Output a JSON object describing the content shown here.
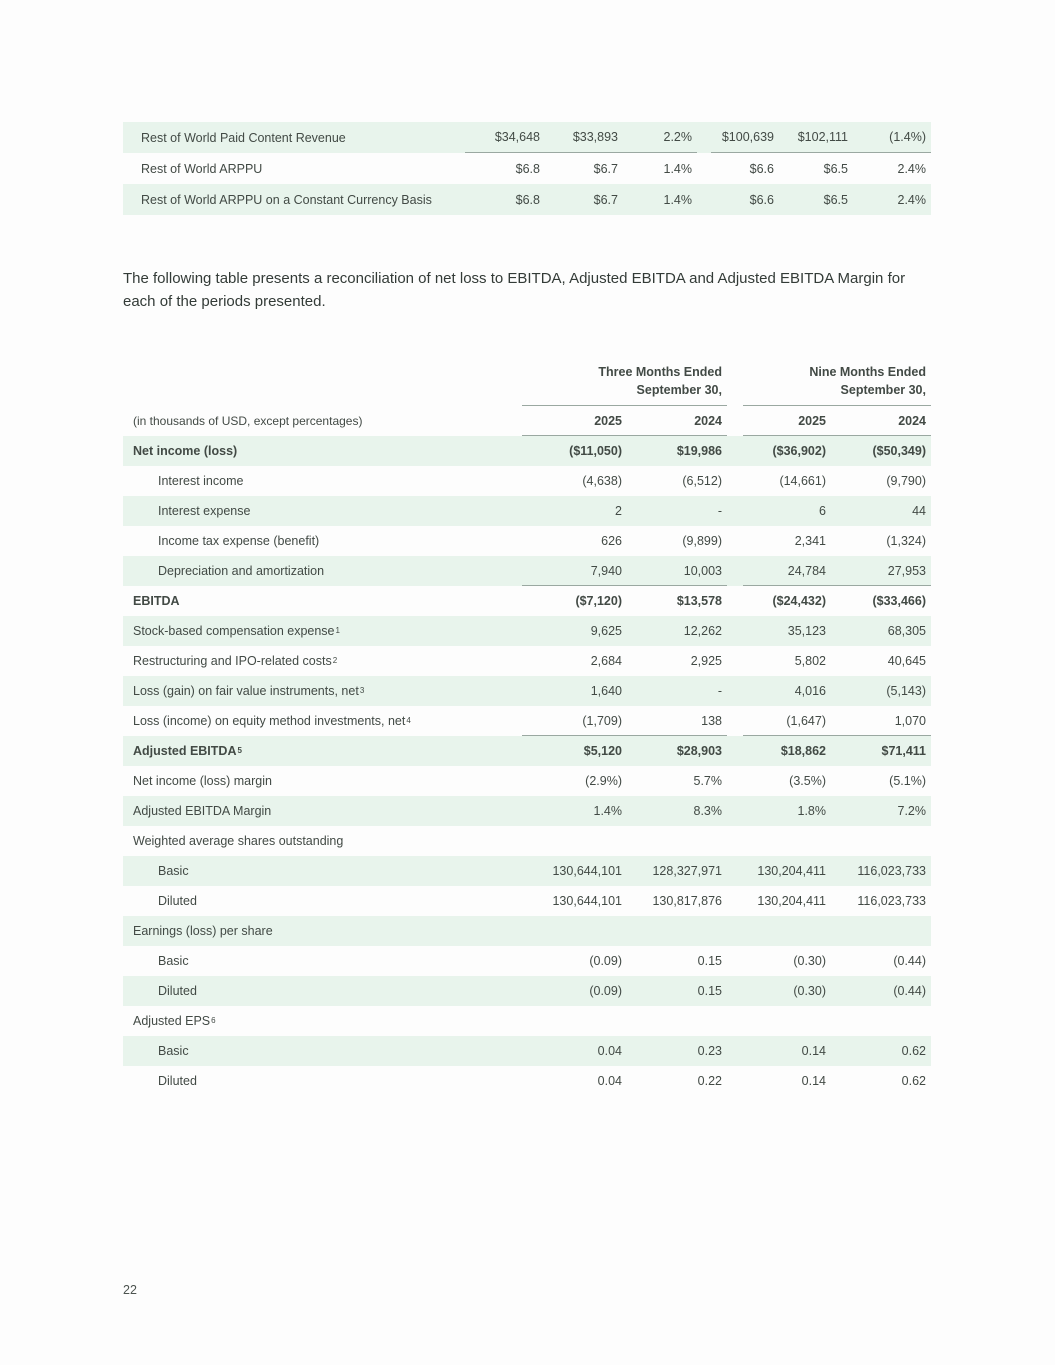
{
  "page": {
    "number": "22"
  },
  "colors": {
    "row_shade": "#e8f4ec",
    "rule": "#9aa8a1",
    "text": "#424a45"
  },
  "intro_paragraph": "The following table presents a reconciliation of net loss to EBITDA, Adjusted EBITDA and Adjusted EBITDA Margin for each of the periods presented.",
  "top_table": {
    "rows": [
      {
        "label": "Rest of World Paid Content Revenue",
        "shaded": true,
        "rule_below": true,
        "values": [
          "$34,648",
          "$33,893",
          "2.2%",
          "$100,639",
          "$102,111",
          "(1.4%)"
        ]
      },
      {
        "label": "Rest of World ARPPU",
        "shaded": false,
        "rule_below": false,
        "values": [
          "$6.8",
          "$6.7",
          "1.4%",
          "$6.6",
          "$6.5",
          "2.4%"
        ]
      },
      {
        "label": "Rest of World ARPPU on a Constant Currency Basis",
        "shaded": true,
        "rule_below": false,
        "values": [
          "$6.8",
          "$6.7",
          "1.4%",
          "$6.6",
          "$6.5",
          "2.4%"
        ]
      }
    ]
  },
  "reconciliation_table": {
    "group_headers": [
      "Three Months Ended\nSeptember 30,",
      "Nine Months Ended\nSeptember 30,"
    ],
    "unit_caption": "(in thousands of USD, except percentages)",
    "year_headers": [
      "2025",
      "2024",
      "2025",
      "2024"
    ],
    "rows": [
      {
        "label": "Net income (loss)",
        "bold": true,
        "indent": 0,
        "shaded": true,
        "values": [
          "($11,050)",
          "$19,986",
          "($36,902)",
          "($50,349)"
        ]
      },
      {
        "label": "Interest income",
        "indent": 1,
        "shaded": false,
        "values": [
          "(4,638)",
          "(6,512)",
          "(14,661)",
          "(9,790)"
        ]
      },
      {
        "label": "Interest expense",
        "indent": 1,
        "shaded": true,
        "values": [
          "2",
          "-",
          "6",
          "44"
        ]
      },
      {
        "label": "Income tax expense (benefit)",
        "indent": 1,
        "shaded": false,
        "values": [
          "626",
          "(9,899)",
          "2,341",
          "(1,324)"
        ]
      },
      {
        "label": "Depreciation and amortization",
        "indent": 1,
        "shaded": true,
        "rule_below": true,
        "values": [
          "7,940",
          "10,003",
          "24,784",
          "27,953"
        ]
      },
      {
        "label": "EBITDA",
        "bold": true,
        "indent": 0,
        "shaded": false,
        "values": [
          "($7,120)",
          "$13,578",
          "($24,432)",
          "($33,466)"
        ]
      },
      {
        "label": "Stock-based compensation expense",
        "sup": "1",
        "indent": 0,
        "shaded": true,
        "values": [
          "9,625",
          "12,262",
          "35,123",
          "68,305"
        ]
      },
      {
        "label": "Restructuring and IPO-related costs",
        "sup": "2",
        "indent": 0,
        "shaded": false,
        "values": [
          "2,684",
          "2,925",
          "5,802",
          "40,645"
        ]
      },
      {
        "label": "Loss (gain) on fair value instruments, net",
        "sup": "3",
        "indent": 0,
        "shaded": true,
        "values": [
          "1,640",
          "-",
          "4,016",
          "(5,143)"
        ]
      },
      {
        "label": "Loss (income) on equity method investments, net",
        "sup": "4",
        "indent": 0,
        "shaded": false,
        "rule_below": true,
        "values": [
          "(1,709)",
          "138",
          "(1,647)",
          "1,070"
        ]
      },
      {
        "label": "Adjusted EBITDA",
        "sup": "5",
        "bold": true,
        "indent": 0,
        "shaded": true,
        "values": [
          "$5,120",
          "$28,903",
          "$18,862",
          "$71,411"
        ]
      },
      {
        "label": "Net income (loss) margin",
        "indent": 0,
        "shaded": false,
        "values": [
          "(2.9%)",
          "5.7%",
          "(3.5%)",
          "(5.1%)"
        ]
      },
      {
        "label": "Adjusted EBITDA Margin",
        "indent": 0,
        "shaded": true,
        "values": [
          "1.4%",
          "8.3%",
          "1.8%",
          "7.2%"
        ]
      },
      {
        "label": "Weighted average shares outstanding",
        "indent": 0,
        "shaded": false,
        "values": [
          "",
          "",
          "",
          ""
        ]
      },
      {
        "label": "Basic",
        "indent": 1,
        "shaded": true,
        "values": [
          "130,644,101",
          "128,327,971",
          "130,204,411",
          "116,023,733"
        ]
      },
      {
        "label": "Diluted",
        "indent": 1,
        "shaded": false,
        "values": [
          "130,644,101",
          "130,817,876",
          "130,204,411",
          "116,023,733"
        ]
      },
      {
        "label": "Earnings (loss) per share",
        "indent": 0,
        "shaded": true,
        "values": [
          "",
          "",
          "",
          ""
        ]
      },
      {
        "label": "Basic",
        "indent": 1,
        "shaded": false,
        "values": [
          "(0.09)",
          "0.15",
          "(0.30)",
          "(0.44)"
        ]
      },
      {
        "label": "Diluted",
        "indent": 1,
        "shaded": true,
        "values": [
          "(0.09)",
          "0.15",
          "(0.30)",
          "(0.44)"
        ]
      },
      {
        "label": "Adjusted EPS",
        "sup": "6",
        "indent": 0,
        "shaded": false,
        "values": [
          "",
          "",
          "",
          ""
        ]
      },
      {
        "label": "Basic",
        "indent": 1,
        "shaded": true,
        "values": [
          "0.04",
          "0.23",
          "0.14",
          "0.62"
        ]
      },
      {
        "label": "Diluted",
        "indent": 1,
        "shaded": false,
        "values": [
          "0.04",
          "0.22",
          "0.14",
          "0.62"
        ]
      }
    ]
  }
}
